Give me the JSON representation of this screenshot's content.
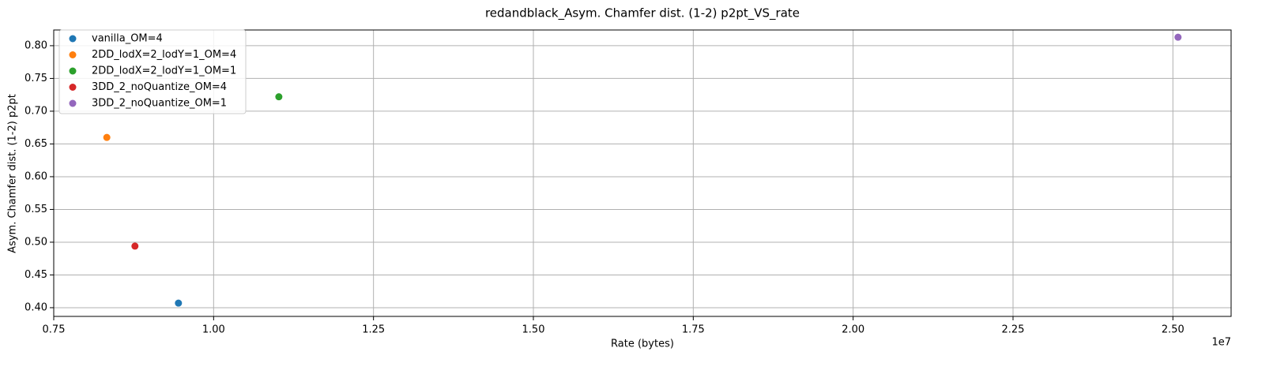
{
  "chart_data": {
    "type": "scatter",
    "title": "redandblack_Asym. Chamfer dist. (1-2) p2pt_VS_rate",
    "x_label": "Rate (bytes)",
    "y_label": "Asym. Chamfer dist. (1-2) p2pt",
    "x_offset_label": "1e7",
    "series": [
      {
        "name": "vanilla_OM=4",
        "color": "#1f77b4",
        "x": [
          9450000
        ],
        "values": [
          0.407
        ]
      },
      {
        "name": "2DD_lodX=2_lodY=1_OM=4",
        "color": "#ff7f0e",
        "x": [
          8330000
        ],
        "values": [
          0.66
        ]
      },
      {
        "name": "2DD_lodX=2_lodY=1_OM=1",
        "color": "#2ca02c",
        "x": [
          11020000
        ],
        "values": [
          0.722
        ]
      },
      {
        "name": "3DD_2_noQuantize_OM=4",
        "color": "#d62728",
        "x": [
          8770000
        ],
        "values": [
          0.494
        ]
      },
      {
        "name": "3DD_2_noQuantize_OM=1",
        "color": "#9467bd",
        "x": [
          25080000
        ],
        "values": [
          0.813
        ]
      }
    ],
    "xlim": [
      7500000,
      25910000
    ],
    "xticks": [
      {
        "value": 7500000,
        "label": "0.75"
      },
      {
        "value": 10000000,
        "label": "1.00"
      },
      {
        "value": 12500000,
        "label": "1.25"
      },
      {
        "value": 15000000,
        "label": "1.50"
      },
      {
        "value": 17500000,
        "label": "1.75"
      },
      {
        "value": 20000000,
        "label": "2.00"
      },
      {
        "value": 22500000,
        "label": "2.25"
      },
      {
        "value": 25000000,
        "label": "2.50"
      }
    ],
    "ylim": [
      0.3867,
      0.824
    ],
    "yticks": [
      {
        "value": 0.4,
        "label": "0.40"
      },
      0.45,
      {
        "value": 0.5,
        "label": "0.50"
      },
      0.55,
      {
        "value": 0.6,
        "label": "0.60"
      },
      0.65,
      {
        "value": 0.7,
        "label": "0.70"
      },
      0.75,
      {
        "value": 0.8,
        "label": "0.80"
      }
    ],
    "grid": true,
    "legend": "upper-left"
  }
}
